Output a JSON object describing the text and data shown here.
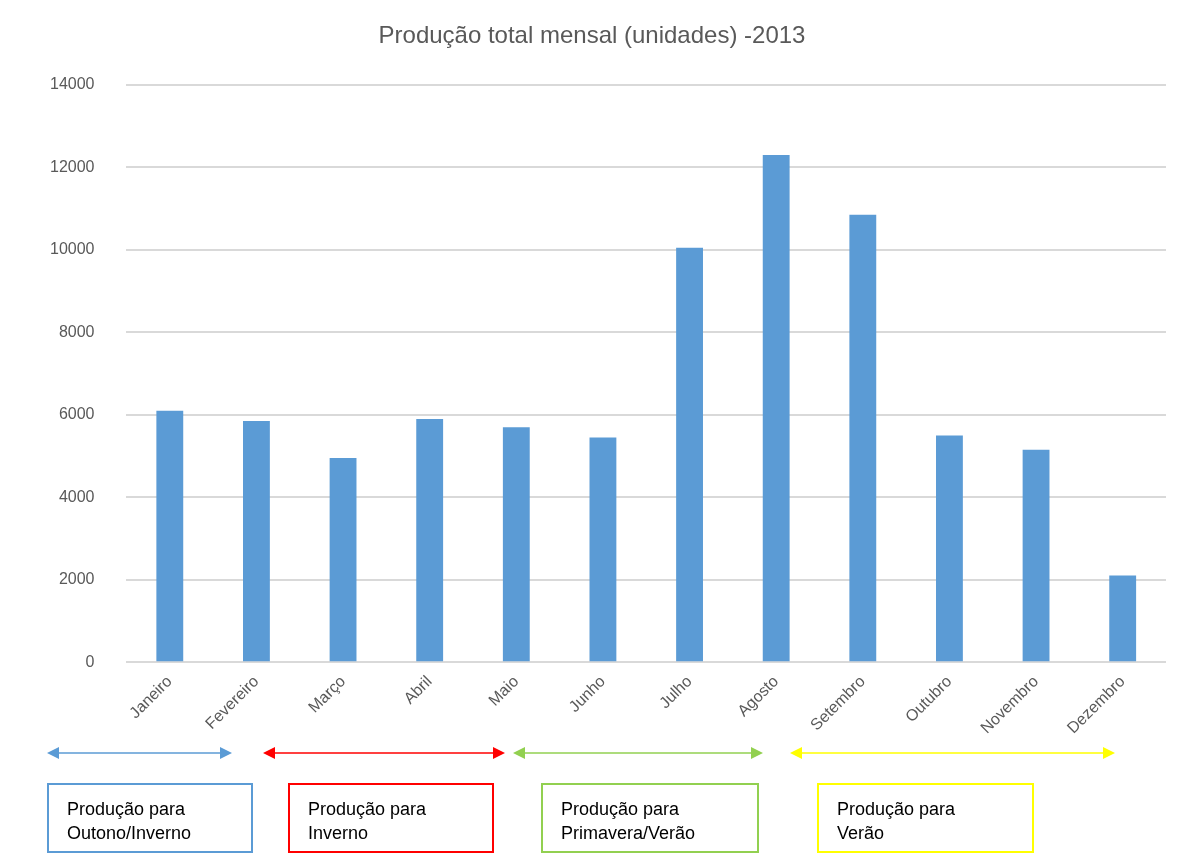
{
  "chart_data": {
    "type": "bar",
    "title": "Produção total mensal (unidades) -2013",
    "categories": [
      "Janeiro",
      "Fevereiro",
      "Março",
      "Abril",
      "Maio",
      "Junho",
      "Julho",
      "Agosto",
      "Setembro",
      "Outubro",
      "Novembro",
      "Dezembro"
    ],
    "values": [
      6100,
      5850,
      4950,
      5900,
      5700,
      5450,
      10050,
      12300,
      10850,
      5500,
      5150,
      2100
    ],
    "color": "#5b9bd5",
    "ylim": [
      0,
      14000
    ],
    "yticks": [
      0,
      2000,
      4000,
      6000,
      8000,
      10000,
      12000,
      14000
    ],
    "grid": "y",
    "annotations": [
      "Produção para Outono/Inverno",
      "Produção para Inverno",
      "Produção para Primavera/Verão",
      "Produção para Verão"
    ]
  }
}
